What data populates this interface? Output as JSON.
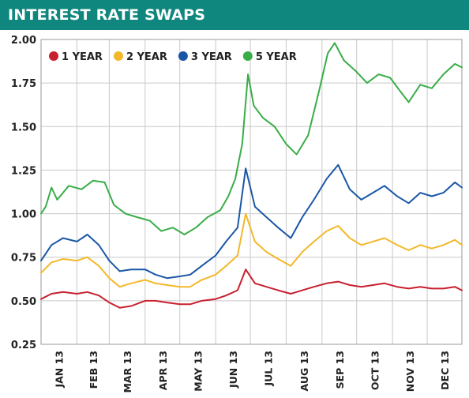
{
  "header": {
    "title": "INTEREST RATE SWAPS",
    "background": "#10877e",
    "text_color": "#ffffff"
  },
  "chart_data": {
    "type": "line",
    "title": "INTEREST RATE SWAPS",
    "xlabel": "",
    "ylabel": "",
    "ylim": [
      0.25,
      2.0
    ],
    "yticks": [
      0.25,
      0.5,
      0.75,
      1.0,
      1.25,
      1.5,
      1.75,
      2.0
    ],
    "ytick_labels": [
      "0.25",
      "0.50",
      "0.75",
      "1.00",
      "1.25",
      "1.50",
      "1.75",
      "2.00"
    ],
    "xlim": [
      "2013-01-01",
      "2013-12-31"
    ],
    "x_month_starts": [
      "2013-01-01",
      "2013-02-01",
      "2013-03-01",
      "2013-04-01",
      "2013-05-01",
      "2013-06-01",
      "2013-07-01",
      "2013-08-01",
      "2013-09-01",
      "2013-10-01",
      "2013-11-01",
      "2013-12-01"
    ],
    "month_labels": [
      "JAN 13",
      "FEB 13",
      "MAR 13",
      "APR 13",
      "MAY 13",
      "JUN 13",
      "JUL 13",
      "AUG 13",
      "SEP 13",
      "OCT 13",
      "NOV 13",
      "DEC 13"
    ],
    "grid": true,
    "legend_position": "top-left",
    "series": [
      {
        "name": "1 YEAR",
        "color": "#c8202f",
        "points": [
          [
            "2013-01-01",
            0.51
          ],
          [
            "2013-01-10",
            0.54
          ],
          [
            "2013-01-20",
            0.55
          ],
          [
            "2013-02-01",
            0.54
          ],
          [
            "2013-02-10",
            0.55
          ],
          [
            "2013-02-20",
            0.53
          ],
          [
            "2013-03-01",
            0.49
          ],
          [
            "2013-03-10",
            0.46
          ],
          [
            "2013-03-20",
            0.47
          ],
          [
            "2013-04-01",
            0.5
          ],
          [
            "2013-04-10",
            0.5
          ],
          [
            "2013-04-20",
            0.49
          ],
          [
            "2013-05-01",
            0.48
          ],
          [
            "2013-05-10",
            0.48
          ],
          [
            "2013-05-20",
            0.5
          ],
          [
            "2013-06-01",
            0.51
          ],
          [
            "2013-06-10",
            0.53
          ],
          [
            "2013-06-20",
            0.56
          ],
          [
            "2013-06-27",
            0.68
          ],
          [
            "2013-07-05",
            0.6
          ],
          [
            "2013-07-15",
            0.58
          ],
          [
            "2013-07-25",
            0.56
          ],
          [
            "2013-08-05",
            0.54
          ],
          [
            "2013-08-15",
            0.56
          ],
          [
            "2013-08-25",
            0.58
          ],
          [
            "2013-09-05",
            0.6
          ],
          [
            "2013-09-15",
            0.61
          ],
          [
            "2013-09-25",
            0.59
          ],
          [
            "2013-10-05",
            0.58
          ],
          [
            "2013-10-15",
            0.59
          ],
          [
            "2013-10-25",
            0.6
          ],
          [
            "2013-11-05",
            0.58
          ],
          [
            "2013-11-15",
            0.57
          ],
          [
            "2013-11-25",
            0.58
          ],
          [
            "2013-12-05",
            0.57
          ],
          [
            "2013-12-15",
            0.57
          ],
          [
            "2013-12-25",
            0.58
          ],
          [
            "2013-12-31",
            0.56
          ]
        ]
      },
      {
        "name": "2 YEAR",
        "color": "#f3b82a",
        "points": [
          [
            "2013-01-01",
            0.66
          ],
          [
            "2013-01-10",
            0.72
          ],
          [
            "2013-01-20",
            0.74
          ],
          [
            "2013-02-01",
            0.73
          ],
          [
            "2013-02-10",
            0.75
          ],
          [
            "2013-02-20",
            0.7
          ],
          [
            "2013-03-01",
            0.63
          ],
          [
            "2013-03-10",
            0.58
          ],
          [
            "2013-03-20",
            0.6
          ],
          [
            "2013-04-01",
            0.62
          ],
          [
            "2013-04-10",
            0.6
          ],
          [
            "2013-04-20",
            0.59
          ],
          [
            "2013-05-01",
            0.58
          ],
          [
            "2013-05-10",
            0.58
          ],
          [
            "2013-05-20",
            0.62
          ],
          [
            "2013-06-01",
            0.65
          ],
          [
            "2013-06-10",
            0.7
          ],
          [
            "2013-06-20",
            0.76
          ],
          [
            "2013-06-27",
            1.0
          ],
          [
            "2013-07-05",
            0.84
          ],
          [
            "2013-07-15",
            0.78
          ],
          [
            "2013-07-25",
            0.74
          ],
          [
            "2013-08-05",
            0.7
          ],
          [
            "2013-08-15",
            0.78
          ],
          [
            "2013-08-25",
            0.84
          ],
          [
            "2013-09-05",
            0.9
          ],
          [
            "2013-09-15",
            0.93
          ],
          [
            "2013-09-25",
            0.86
          ],
          [
            "2013-10-05",
            0.82
          ],
          [
            "2013-10-15",
            0.84
          ],
          [
            "2013-10-25",
            0.86
          ],
          [
            "2013-11-05",
            0.82
          ],
          [
            "2013-11-15",
            0.79
          ],
          [
            "2013-11-25",
            0.82
          ],
          [
            "2013-12-05",
            0.8
          ],
          [
            "2013-12-15",
            0.82
          ],
          [
            "2013-12-25",
            0.85
          ],
          [
            "2013-12-31",
            0.82
          ]
        ]
      },
      {
        "name": "3 YEAR",
        "color": "#1957a6",
        "points": [
          [
            "2013-01-01",
            0.73
          ],
          [
            "2013-01-10",
            0.82
          ],
          [
            "2013-01-20",
            0.86
          ],
          [
            "2013-02-01",
            0.84
          ],
          [
            "2013-02-10",
            0.88
          ],
          [
            "2013-02-20",
            0.82
          ],
          [
            "2013-03-01",
            0.73
          ],
          [
            "2013-03-10",
            0.67
          ],
          [
            "2013-03-20",
            0.68
          ],
          [
            "2013-04-01",
            0.68
          ],
          [
            "2013-04-10",
            0.65
          ],
          [
            "2013-04-20",
            0.63
          ],
          [
            "2013-05-01",
            0.64
          ],
          [
            "2013-05-10",
            0.65
          ],
          [
            "2013-05-20",
            0.7
          ],
          [
            "2013-06-01",
            0.76
          ],
          [
            "2013-06-10",
            0.84
          ],
          [
            "2013-06-20",
            0.92
          ],
          [
            "2013-06-27",
            1.26
          ],
          [
            "2013-07-05",
            1.04
          ],
          [
            "2013-07-15",
            0.98
          ],
          [
            "2013-07-25",
            0.92
          ],
          [
            "2013-08-05",
            0.86
          ],
          [
            "2013-08-15",
            0.98
          ],
          [
            "2013-08-25",
            1.08
          ],
          [
            "2013-09-05",
            1.2
          ],
          [
            "2013-09-15",
            1.28
          ],
          [
            "2013-09-25",
            1.14
          ],
          [
            "2013-10-05",
            1.08
          ],
          [
            "2013-10-15",
            1.12
          ],
          [
            "2013-10-25",
            1.16
          ],
          [
            "2013-11-05",
            1.1
          ],
          [
            "2013-11-15",
            1.06
          ],
          [
            "2013-11-25",
            1.12
          ],
          [
            "2013-12-05",
            1.1
          ],
          [
            "2013-12-15",
            1.12
          ],
          [
            "2013-12-25",
            1.18
          ],
          [
            "2013-12-31",
            1.15
          ]
        ]
      },
      {
        "name": "5 YEAR",
        "color": "#39ad48",
        "points": [
          [
            "2013-01-01",
            1.0
          ],
          [
            "2013-01-05",
            1.04
          ],
          [
            "2013-01-10",
            1.15
          ],
          [
            "2013-01-15",
            1.08
          ],
          [
            "2013-01-25",
            1.16
          ],
          [
            "2013-02-05",
            1.14
          ],
          [
            "2013-02-15",
            1.19
          ],
          [
            "2013-02-25",
            1.18
          ],
          [
            "2013-03-05",
            1.05
          ],
          [
            "2013-03-15",
            1.0
          ],
          [
            "2013-03-25",
            0.98
          ],
          [
            "2013-04-05",
            0.96
          ],
          [
            "2013-04-15",
            0.9
          ],
          [
            "2013-04-25",
            0.92
          ],
          [
            "2013-05-05",
            0.88
          ],
          [
            "2013-05-15",
            0.92
          ],
          [
            "2013-05-25",
            0.98
          ],
          [
            "2013-06-05",
            1.02
          ],
          [
            "2013-06-12",
            1.1
          ],
          [
            "2013-06-18",
            1.2
          ],
          [
            "2013-06-24",
            1.4
          ],
          [
            "2013-06-29",
            1.8
          ],
          [
            "2013-07-04",
            1.62
          ],
          [
            "2013-07-12",
            1.55
          ],
          [
            "2013-07-22",
            1.5
          ],
          [
            "2013-08-01",
            1.4
          ],
          [
            "2013-08-10",
            1.34
          ],
          [
            "2013-08-20",
            1.45
          ],
          [
            "2013-08-30",
            1.72
          ],
          [
            "2013-09-06",
            1.92
          ],
          [
            "2013-09-12",
            1.98
          ],
          [
            "2013-09-20",
            1.88
          ],
          [
            "2013-09-30",
            1.82
          ],
          [
            "2013-10-10",
            1.75
          ],
          [
            "2013-10-20",
            1.8
          ],
          [
            "2013-10-30",
            1.78
          ],
          [
            "2013-11-08",
            1.7
          ],
          [
            "2013-11-15",
            1.64
          ],
          [
            "2013-11-25",
            1.74
          ],
          [
            "2013-12-05",
            1.72
          ],
          [
            "2013-12-15",
            1.8
          ],
          [
            "2013-12-25",
            1.86
          ],
          [
            "2013-12-31",
            1.84
          ]
        ]
      }
    ]
  }
}
